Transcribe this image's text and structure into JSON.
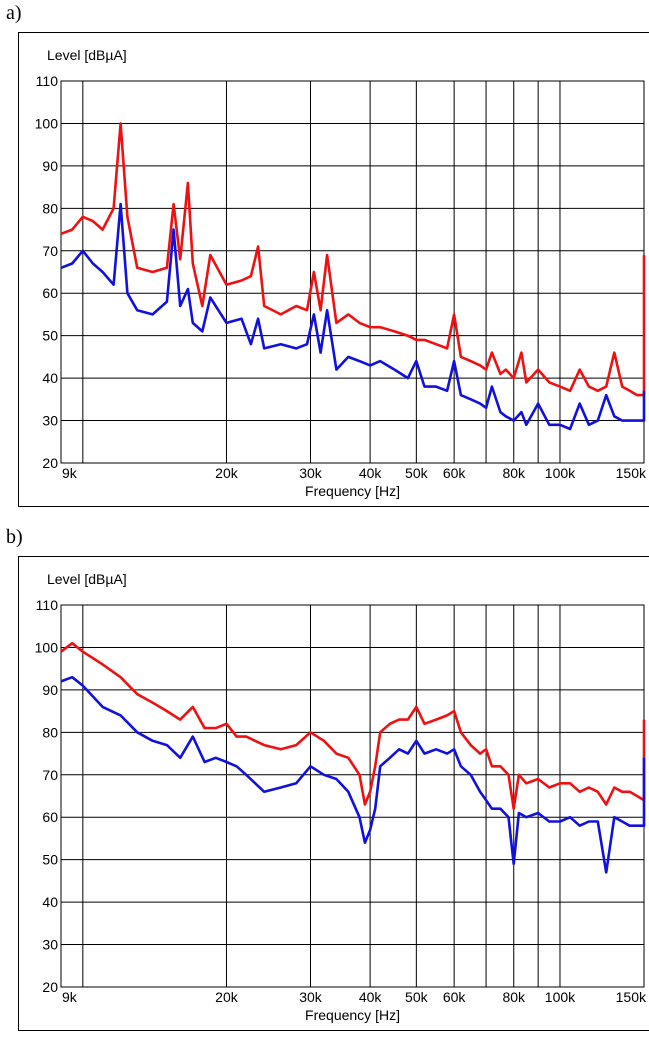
{
  "panels": [
    {
      "label": "a)"
    },
    {
      "label": "b)"
    }
  ],
  "chart_data": [
    {
      "type": "line",
      "panel": "a)",
      "ylabel": "Level [dBµA]",
      "xlabel": "Frequency [Hz]",
      "x_scale": "log",
      "xlim": [
        9000,
        150000
      ],
      "ylim": [
        20,
        110
      ],
      "grid": true,
      "y_ticks": [
        20,
        30,
        40,
        50,
        60,
        70,
        80,
        90,
        100,
        110
      ],
      "x_ticks": [
        {
          "value": 9000,
          "label": "9k"
        },
        {
          "value": 10000,
          "label": ""
        },
        {
          "value": 20000,
          "label": "20k"
        },
        {
          "value": 30000,
          "label": "30k"
        },
        {
          "value": 40000,
          "label": "40k"
        },
        {
          "value": 50000,
          "label": "50k"
        },
        {
          "value": 60000,
          "label": "60k"
        },
        {
          "value": 70000,
          "label": ""
        },
        {
          "value": 80000,
          "label": "80k"
        },
        {
          "value": 90000,
          "label": ""
        },
        {
          "value": 100000,
          "label": "100k"
        },
        {
          "value": 150000,
          "label": "150k"
        }
      ],
      "series": [
        {
          "color": "#ee1111",
          "x": [
            9000,
            9500,
            10000,
            10500,
            11000,
            11600,
            12000,
            12400,
            13000,
            14000,
            15000,
            15500,
            16000,
            16600,
            17000,
            17800,
            18500,
            20000,
            21500,
            22500,
            23300,
            24000,
            26000,
            28000,
            29500,
            30500,
            31500,
            32500,
            34000,
            36000,
            38000,
            40000,
            42000,
            45000,
            48000,
            50000,
            52000,
            55000,
            58000,
            60000,
            62000,
            65000,
            68000,
            70000,
            72000,
            75000,
            77000,
            80000,
            83000,
            85000,
            90000,
            95000,
            100000,
            105000,
            110000,
            115000,
            120000,
            125000,
            130000,
            135000,
            140000,
            145000,
            150000,
            150000
          ],
          "values": [
            74,
            75,
            78,
            77,
            75,
            80,
            100,
            78,
            66,
            65,
            66,
            81,
            68,
            86,
            67,
            57,
            69,
            62,
            63,
            64,
            71,
            57,
            55,
            57,
            56,
            65,
            56,
            69,
            53,
            55,
            53,
            52,
            52,
            51,
            50,
            49,
            49,
            48,
            47,
            55,
            45,
            44,
            43,
            42,
            46,
            41,
            42,
            40,
            46,
            39,
            42,
            39,
            38,
            37,
            42,
            38,
            37,
            38,
            46,
            38,
            37,
            36,
            36,
            69
          ]
        },
        {
          "color": "#1111dd",
          "x": [
            9000,
            9500,
            10000,
            10500,
            11000,
            11600,
            12000,
            12400,
            13000,
            14000,
            15000,
            15500,
            16000,
            16600,
            17000,
            17800,
            18500,
            20000,
            21500,
            22500,
            23300,
            24000,
            26000,
            28000,
            29500,
            30500,
            31500,
            32500,
            34000,
            36000,
            38000,
            40000,
            42000,
            45000,
            48000,
            50000,
            52000,
            55000,
            58000,
            60000,
            62000,
            65000,
            68000,
            70000,
            72000,
            75000,
            77000,
            80000,
            83000,
            85000,
            90000,
            95000,
            100000,
            105000,
            110000,
            115000,
            120000,
            125000,
            130000,
            135000,
            140000,
            145000,
            150000,
            150000
          ],
          "values": [
            66,
            67,
            70,
            67,
            65,
            62,
            81,
            60,
            56,
            55,
            58,
            75,
            57,
            61,
            53,
            51,
            59,
            53,
            54,
            48,
            54,
            47,
            48,
            47,
            48,
            55,
            46,
            56,
            42,
            45,
            44,
            43,
            44,
            42,
            40,
            44,
            38,
            38,
            37,
            44,
            36,
            35,
            34,
            33,
            38,
            32,
            31,
            30,
            32,
            29,
            34,
            29,
            29,
            28,
            34,
            29,
            30,
            36,
            31,
            30,
            30,
            30,
            30,
            37
          ]
        }
      ]
    },
    {
      "type": "line",
      "panel": "b)",
      "ylabel": "Level [dBµA]",
      "xlabel": "Frequency [Hz]",
      "x_scale": "log",
      "xlim": [
        9000,
        150000
      ],
      "ylim": [
        20,
        110
      ],
      "grid": true,
      "y_ticks": [
        20,
        30,
        40,
        50,
        60,
        70,
        80,
        90,
        100,
        110
      ],
      "x_ticks": [
        {
          "value": 9000,
          "label": "9k"
        },
        {
          "value": 10000,
          "label": ""
        },
        {
          "value": 20000,
          "label": "20k"
        },
        {
          "value": 30000,
          "label": "30k"
        },
        {
          "value": 40000,
          "label": "40k"
        },
        {
          "value": 50000,
          "label": "50k"
        },
        {
          "value": 60000,
          "label": "60k"
        },
        {
          "value": 70000,
          "label": ""
        },
        {
          "value": 80000,
          "label": "80k"
        },
        {
          "value": 90000,
          "label": ""
        },
        {
          "value": 100000,
          "label": "100k"
        },
        {
          "value": 150000,
          "label": "150k"
        }
      ],
      "series": [
        {
          "color": "#ee1111",
          "x": [
            9000,
            9500,
            10000,
            11000,
            12000,
            13000,
            14000,
            15000,
            16000,
            17000,
            18000,
            19000,
            20000,
            21000,
            22000,
            24000,
            26000,
            28000,
            30000,
            32000,
            34000,
            36000,
            38000,
            39000,
            40000,
            41000,
            42000,
            44000,
            46000,
            48000,
            50000,
            52000,
            55000,
            58000,
            60000,
            62000,
            65000,
            68000,
            70000,
            72000,
            75000,
            78000,
            80000,
            82000,
            85000,
            90000,
            95000,
            100000,
            105000,
            110000,
            115000,
            120000,
            125000,
            130000,
            135000,
            140000,
            145000,
            150000,
            150000
          ],
          "values": [
            99,
            101,
            99,
            96,
            93,
            89,
            87,
            85,
            83,
            86,
            81,
            81,
            82,
            79,
            79,
            77,
            76,
            77,
            80,
            78,
            75,
            74,
            70,
            63,
            66,
            72,
            80,
            82,
            83,
            83,
            86,
            82,
            83,
            84,
            85,
            80,
            77,
            75,
            76,
            72,
            72,
            70,
            62,
            70,
            68,
            69,
            67,
            68,
            68,
            66,
            67,
            66,
            63,
            67,
            66,
            66,
            65,
            64,
            83
          ]
        },
        {
          "color": "#1111dd",
          "x": [
            9000,
            9500,
            10000,
            11000,
            12000,
            13000,
            14000,
            15000,
            16000,
            17000,
            18000,
            19000,
            20000,
            21000,
            22000,
            24000,
            26000,
            28000,
            30000,
            32000,
            34000,
            36000,
            38000,
            39000,
            40000,
            41000,
            42000,
            44000,
            46000,
            48000,
            50000,
            52000,
            55000,
            58000,
            60000,
            62000,
            65000,
            68000,
            70000,
            72000,
            75000,
            78000,
            80000,
            82000,
            85000,
            90000,
            95000,
            100000,
            105000,
            110000,
            115000,
            120000,
            125000,
            130000,
            135000,
            140000,
            145000,
            150000,
            150000
          ],
          "values": [
            92,
            93,
            91,
            86,
            84,
            80,
            78,
            77,
            74,
            79,
            73,
            74,
            73,
            72,
            70,
            66,
            67,
            68,
            72,
            70,
            69,
            66,
            60,
            54,
            57,
            62,
            72,
            74,
            76,
            75,
            78,
            75,
            76,
            75,
            76,
            72,
            70,
            66,
            64,
            62,
            62,
            60,
            49,
            61,
            60,
            61,
            59,
            59,
            60,
            58,
            59,
            59,
            47,
            60,
            59,
            58,
            58,
            58,
            74
          ]
        }
      ]
    }
  ]
}
